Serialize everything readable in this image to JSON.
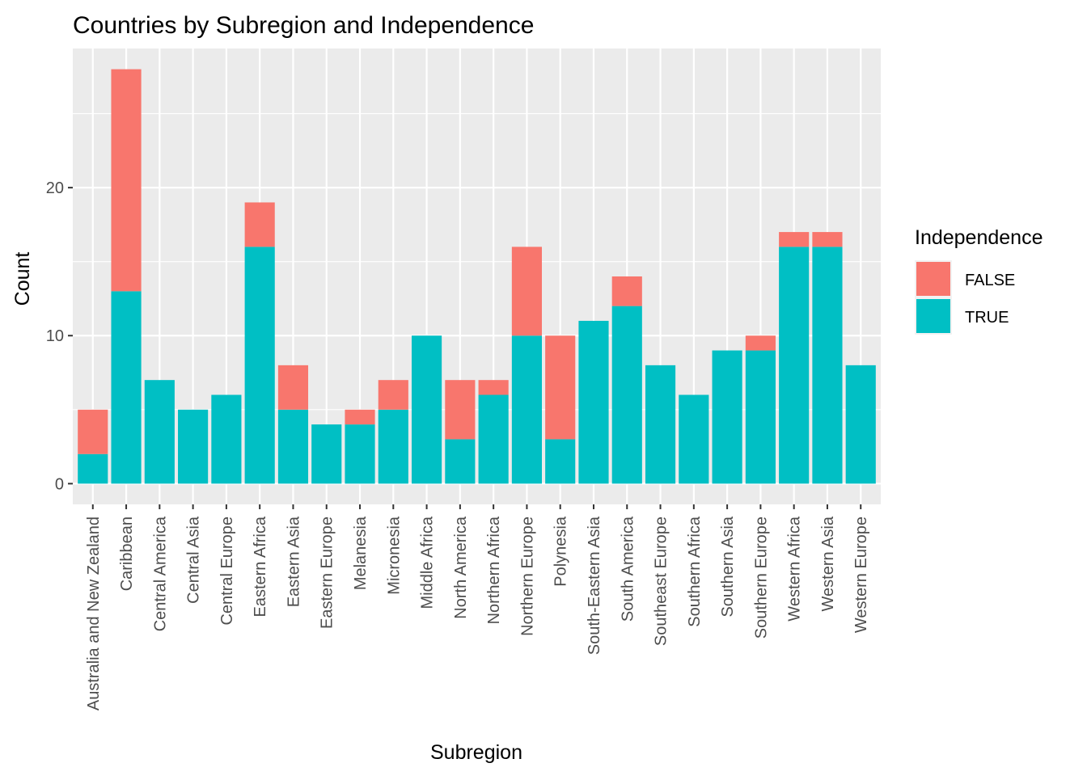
{
  "chart_data": {
    "type": "bar",
    "stacked": true,
    "title": "Countries by Subregion and Independence",
    "xlabel": "Subregion",
    "ylabel": "Count",
    "ylim": [
      0,
      28
    ],
    "yticks": [
      0,
      10,
      20
    ],
    "grid": true,
    "legend": {
      "title": "Independence",
      "placement": "right"
    },
    "categories": [
      "Australia and New Zealand",
      "Caribbean",
      "Central America",
      "Central Asia",
      "Central Europe",
      "Eastern Africa",
      "Eastern Asia",
      "Eastern Europe",
      "Melanesia",
      "Micronesia",
      "Middle Africa",
      "North America",
      "Northern Africa",
      "Northern Europe",
      "Polynesia",
      "South-Eastern Asia",
      "South America",
      "Southeast Europe",
      "Southern Africa",
      "Southern Asia",
      "Southern Europe",
      "Western Africa",
      "Western Asia",
      "Western Europe"
    ],
    "series": [
      {
        "name": "TRUE",
        "color": "#00bfc4",
        "values": [
          2,
          13,
          7,
          5,
          6,
          16,
          5,
          4,
          4,
          5,
          10,
          3,
          6,
          10,
          3,
          11,
          12,
          8,
          6,
          9,
          9,
          16,
          16,
          8
        ]
      },
      {
        "name": "FALSE",
        "color": "#f8766d",
        "values": [
          3,
          15,
          0,
          0,
          0,
          3,
          3,
          0,
          1,
          2,
          0,
          4,
          1,
          6,
          7,
          0,
          2,
          0,
          0,
          0,
          1,
          1,
          1,
          0
        ]
      }
    ],
    "legend_order": [
      "FALSE",
      "TRUE"
    ],
    "colors": {
      "panel_background": "#ebebeb",
      "grid_major": "#ffffff",
      "axis_text": "#4d4d4d",
      "title_text": "#000000"
    }
  }
}
